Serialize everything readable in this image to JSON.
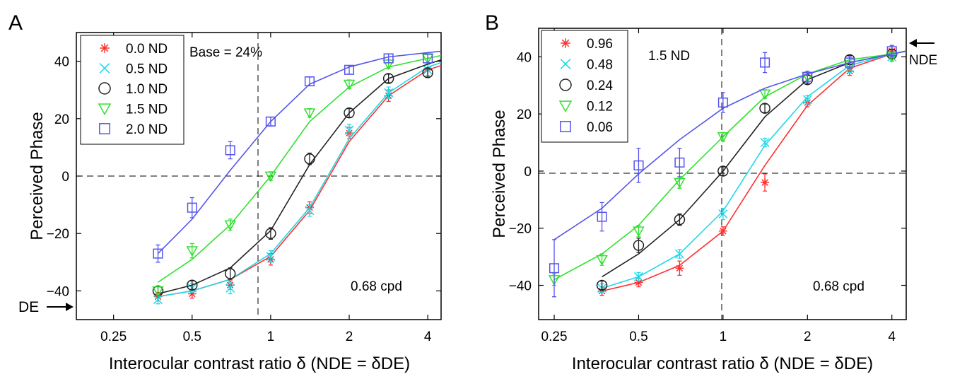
{
  "chart_data": [
    {
      "panel_label": "A",
      "type": "line",
      "x_scale": "log2",
      "xlim": [
        0.18,
        4.5
      ],
      "ylim": [
        -50,
        50
      ],
      "xticks": [
        "0.25",
        "0.5",
        "1",
        "2",
        "4"
      ],
      "xtick_values": [
        0.25,
        0.5,
        1,
        2,
        4
      ],
      "yticks": [
        "−40",
        "−20",
        "0",
        "20",
        "40"
      ],
      "ytick_values": [
        -40,
        -20,
        0,
        20,
        40
      ],
      "xlabel": "Interocular contrast ratio δ (NDE = δDE)",
      "ylabel": "Perceived Phase",
      "annotations": {
        "base": "Base = 24%",
        "freq": "0.68 cpd",
        "arrow_label": "DE"
      },
      "legend_position": "top-left",
      "series": [
        {
          "name": "0.0 ND",
          "color": "#ff3030",
          "marker": "star",
          "points": [
            [
              0.37,
              -42
            ],
            [
              0.5,
              -41
            ],
            [
              0.7,
              -38
            ],
            [
              1.0,
              -29
            ],
            [
              1.41,
              -11
            ],
            [
              2.0,
              15
            ],
            [
              2.83,
              28
            ],
            [
              4.0,
              37
            ]
          ],
          "errors": [
            1.5,
            1.5,
            1.5,
            2,
            2,
            2,
            2,
            2
          ],
          "fit": [
            [
              0.37,
              -42
            ],
            [
              0.5,
              -40
            ],
            [
              0.7,
              -36
            ],
            [
              1.0,
              -28
            ],
            [
              1.41,
              -12
            ],
            [
              2.0,
              12
            ],
            [
              2.83,
              28
            ],
            [
              4.0,
              37
            ],
            [
              4.5,
              38.5
            ]
          ]
        },
        {
          "name": "0.5 ND",
          "color": "#20d8e8",
          "marker": "x",
          "points": [
            [
              0.37,
              -43
            ],
            [
              0.5,
              -39
            ],
            [
              0.7,
              -39
            ],
            [
              1.0,
              -28
            ],
            [
              1.41,
              -12
            ],
            [
              2.0,
              16
            ],
            [
              2.83,
              29
            ],
            [
              4.0,
              37
            ]
          ],
          "errors": [
            1.5,
            1.5,
            2,
            2,
            2,
            2,
            2,
            2
          ],
          "fit": [
            [
              0.37,
              -42
            ],
            [
              0.5,
              -40
            ],
            [
              0.7,
              -36
            ],
            [
              1.0,
              -27
            ],
            [
              1.41,
              -11
            ],
            [
              2.0,
              13
            ],
            [
              2.83,
              29
            ],
            [
              4.0,
              38
            ],
            [
              4.5,
              39.5
            ]
          ]
        },
        {
          "name": "1.0 ND",
          "color": "#222222",
          "marker": "circle",
          "points": [
            [
              0.37,
              -40
            ],
            [
              0.5,
              -38
            ],
            [
              0.7,
              -34
            ],
            [
              1.0,
              -20
            ],
            [
              1.41,
              6
            ],
            [
              2.0,
              22
            ],
            [
              2.83,
              34
            ],
            [
              4.0,
              36
            ]
          ],
          "errors": [
            1.5,
            1.5,
            2,
            2,
            2,
            1.5,
            1.5,
            1.5
          ],
          "fit": [
            [
              0.37,
              -41
            ],
            [
              0.5,
              -38
            ],
            [
              0.7,
              -32
            ],
            [
              1.0,
              -19
            ],
            [
              1.41,
              4
            ],
            [
              2.0,
              22
            ],
            [
              2.83,
              34
            ],
            [
              4.0,
              39
            ],
            [
              4.5,
              40.5
            ]
          ]
        },
        {
          "name": "1.5 ND",
          "color": "#30e030",
          "marker": "triangle",
          "points": [
            [
              0.37,
              -40
            ],
            [
              0.5,
              -26
            ],
            [
              0.7,
              -17
            ],
            [
              1.0,
              0
            ],
            [
              1.41,
              22
            ],
            [
              2.0,
              32
            ],
            [
              2.83,
              39
            ],
            [
              4.0,
              41
            ]
          ],
          "errors": [
            1.5,
            2.5,
            2,
            1.5,
            1.5,
            1.5,
            1.5,
            1.5
          ],
          "fit": [
            [
              0.37,
              -37
            ],
            [
              0.5,
              -29
            ],
            [
              0.7,
              -17
            ],
            [
              1.0,
              0
            ],
            [
              1.41,
              19
            ],
            [
              2.0,
              31
            ],
            [
              2.83,
              38
            ],
            [
              4.0,
              41
            ],
            [
              4.5,
              42
            ]
          ]
        },
        {
          "name": "2.0 ND",
          "color": "#5555ee",
          "marker": "square",
          "points": [
            [
              0.37,
              -27
            ],
            [
              0.5,
              -11
            ],
            [
              0.7,
              9
            ],
            [
              1.0,
              19
            ],
            [
              1.41,
              33
            ],
            [
              2.0,
              37
            ],
            [
              2.83,
              41
            ],
            [
              4.0,
              41
            ]
          ],
          "errors": [
            3,
            3.5,
            3,
            1.5,
            1.5,
            1.5,
            1.5,
            1.5
          ],
          "fit": [
            [
              0.37,
              -27
            ],
            [
              0.5,
              -15
            ],
            [
              0.7,
              2
            ],
            [
              1.0,
              19
            ],
            [
              1.41,
              32
            ],
            [
              2.0,
              38
            ],
            [
              2.83,
              41.5
            ],
            [
              4.0,
              43
            ],
            [
              4.5,
              43.5
            ]
          ]
        }
      ]
    },
    {
      "panel_label": "B",
      "type": "line",
      "x_scale": "log2",
      "xlim": [
        0.22,
        4.5
      ],
      "ylim": [
        -52,
        50
      ],
      "xticks": [
        "0.25",
        "0.5",
        "1",
        "2",
        "4"
      ],
      "xtick_values": [
        0.25,
        0.5,
        1,
        2,
        4
      ],
      "yticks": [
        "−40",
        "−20",
        "0",
        "20",
        "40"
      ],
      "ytick_values": [
        -40,
        -20,
        0,
        20,
        40
      ],
      "xlabel": "Interocular contrast ratio δ (NDE = δDE)",
      "ylabel": "Perceived Phase",
      "annotations": {
        "nd": "1.5 ND",
        "freq": "0.68 cpd",
        "arrow_label": "NDE"
      },
      "legend_position": "top-left",
      "series": [
        {
          "name": "0.96",
          "color": "#ff3030",
          "marker": "star",
          "points": [
            [
              0.37,
              -42
            ],
            [
              0.5,
              -39
            ],
            [
              0.7,
              -34
            ],
            [
              1.0,
              -21
            ],
            [
              1.41,
              -4
            ],
            [
              2.0,
              24
            ],
            [
              2.83,
              35
            ],
            [
              4.0,
              42
            ]
          ],
          "errors": [
            1.5,
            1.5,
            2.5,
            1.5,
            3,
            1.5,
            1.5,
            2
          ],
          "fit": [
            [
              0.37,
              -42
            ],
            [
              0.5,
              -39
            ],
            [
              0.7,
              -33
            ],
            [
              1.0,
              -21
            ],
            [
              1.41,
              2
            ],
            [
              2.0,
              23
            ],
            [
              2.83,
              36
            ],
            [
              4.0,
              41
            ],
            [
              4.5,
              42
            ]
          ]
        },
        {
          "name": "0.48",
          "color": "#20d8e8",
          "marker": "x",
          "points": [
            [
              0.37,
              -41
            ],
            [
              0.5,
              -37
            ],
            [
              0.7,
              -29
            ],
            [
              1.0,
              -15
            ],
            [
              1.41,
              10
            ],
            [
              2.0,
              25
            ],
            [
              2.83,
              36
            ],
            [
              4.0,
              40
            ]
          ],
          "errors": [
            1.5,
            1.5,
            1.5,
            2,
            1.5,
            1.5,
            1.5,
            1.5
          ],
          "fit": [
            [
              0.37,
              -41
            ],
            [
              0.5,
              -37
            ],
            [
              0.7,
              -29
            ],
            [
              1.0,
              -14
            ],
            [
              1.41,
              9
            ],
            [
              2.0,
              26
            ],
            [
              2.83,
              37
            ],
            [
              4.0,
              41
            ],
            [
              4.5,
              42
            ]
          ]
        },
        {
          "name": "0.24",
          "color": "#222222",
          "marker": "circle",
          "points": [
            [
              0.37,
              -40
            ],
            [
              0.5,
              -26
            ],
            [
              0.7,
              -17
            ],
            [
              1.0,
              0
            ],
            [
              1.41,
              22
            ],
            [
              2.0,
              32
            ],
            [
              2.83,
              39
            ],
            [
              4.0,
              41
            ]
          ],
          "errors": [
            1.5,
            2.5,
            2,
            1.5,
            1.5,
            1.5,
            1.5,
            1.5
          ],
          "fit": [
            [
              0.37,
              -37
            ],
            [
              0.5,
              -29
            ],
            [
              0.7,
              -17
            ],
            [
              1.0,
              0
            ],
            [
              1.41,
              19
            ],
            [
              2.0,
              32
            ],
            [
              2.83,
              38
            ],
            [
              4.0,
              41
            ],
            [
              4.5,
              42
            ]
          ]
        },
        {
          "name": "0.12",
          "color": "#30e030",
          "marker": "triangle",
          "points": [
            [
              0.25,
              -38
            ],
            [
              0.37,
              -31
            ],
            [
              0.5,
              -21
            ],
            [
              0.7,
              -4
            ],
            [
              1.0,
              12
            ],
            [
              1.41,
              27
            ],
            [
              2.0,
              33
            ],
            [
              2.83,
              37
            ],
            [
              4.0,
              40
            ]
          ],
          "errors": [
            2,
            2,
            2,
            2,
            1.5,
            1.5,
            1.5,
            1.5,
            1.5
          ],
          "fit": [
            [
              0.25,
              -38
            ],
            [
              0.37,
              -29
            ],
            [
              0.5,
              -19
            ],
            [
              0.7,
              -3
            ],
            [
              1.0,
              12
            ],
            [
              1.41,
              26
            ],
            [
              2.0,
              34
            ],
            [
              2.83,
              39
            ],
            [
              4.0,
              41
            ],
            [
              4.5,
              42
            ]
          ]
        },
        {
          "name": "0.06",
          "color": "#5555ee",
          "marker": "square",
          "points": [
            [
              0.25,
              -34
            ],
            [
              0.37,
              -16
            ],
            [
              0.5,
              2
            ],
            [
              0.7,
              3
            ],
            [
              1.0,
              24
            ],
            [
              1.41,
              38
            ],
            [
              2.0,
              33
            ],
            [
              2.83,
              38
            ],
            [
              4.0,
              42
            ]
          ],
          "errors": [
            10,
            5,
            6,
            5,
            3.5,
            3.5,
            2,
            2,
            2
          ],
          "fit": [
            [
              0.25,
              -24
            ],
            [
              0.37,
              -13
            ],
            [
              0.5,
              -1
            ],
            [
              0.7,
              11
            ],
            [
              1.0,
              22
            ],
            [
              1.41,
              29
            ],
            [
              2.0,
              34
            ],
            [
              2.83,
              38
            ],
            [
              4.0,
              41
            ],
            [
              4.5,
              42
            ]
          ]
        }
      ]
    }
  ]
}
